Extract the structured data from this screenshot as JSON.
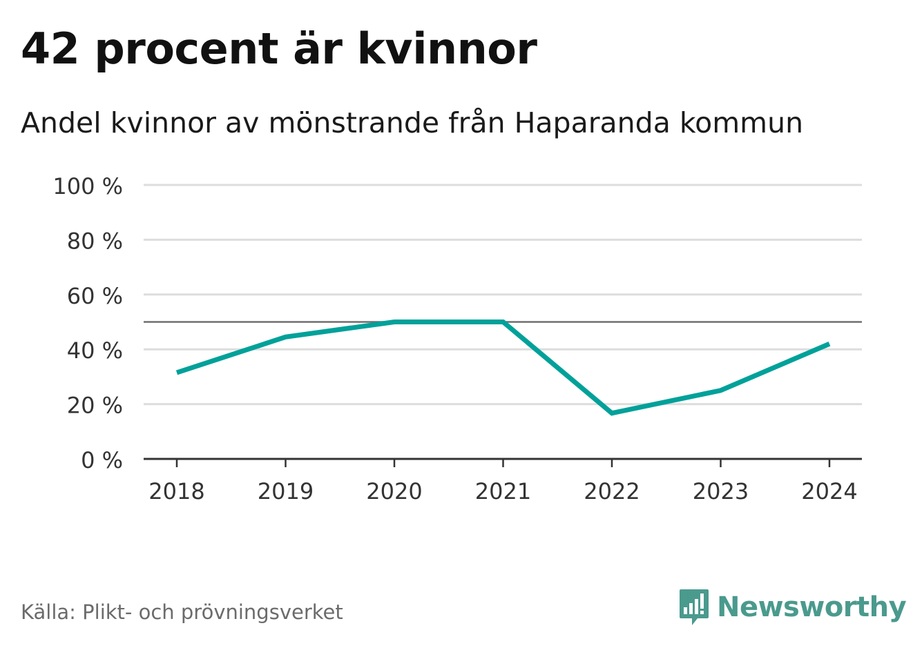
{
  "title": "42 procent är kvinnor",
  "subtitle": "Andel kvinnor av mönstrande från Haparanda kommun",
  "source": "Källa: Plikt- och prövningsverket",
  "brand": "Newsworthy",
  "colors": {
    "line": "#00a19a",
    "grid": "#dddddd",
    "reference": "#6e6e6e",
    "axis": "#333333",
    "brand": "#4a9a8d"
  },
  "chart_data": {
    "type": "line",
    "title": "42 procent är kvinnor",
    "subtitle": "Andel kvinnor av mönstrande från Haparanda kommun",
    "x": [
      "2018",
      "2019",
      "2020",
      "2021",
      "2022",
      "2023",
      "2024"
    ],
    "series": [
      {
        "values": [
          31.5,
          44.5,
          50,
          50,
          16.7,
          25,
          42
        ]
      }
    ],
    "ylim": [
      0,
      100
    ],
    "yticks": [
      0,
      20,
      40,
      60,
      80,
      100
    ],
    "ytick_labels": [
      "0 %",
      "20 %",
      "40 %",
      "60 %",
      "80 %",
      "100 %"
    ],
    "reference_line": 50,
    "grid": true,
    "legend": "none"
  }
}
